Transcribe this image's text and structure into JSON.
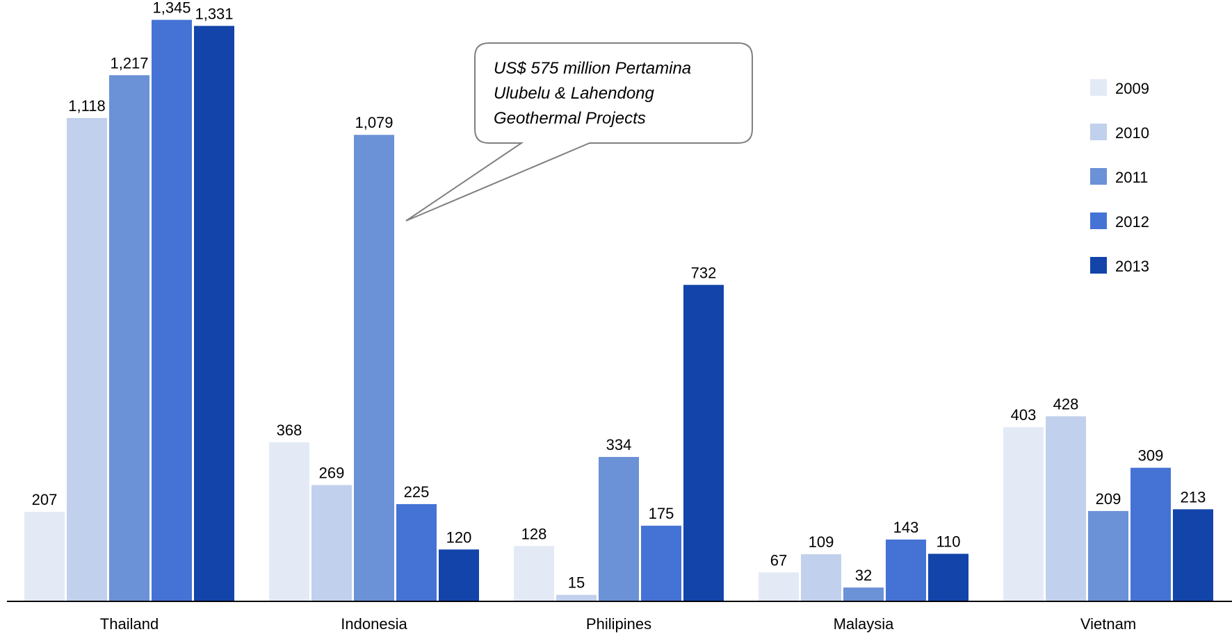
{
  "chart_data": {
    "type": "bar",
    "categories": [
      "Thailand",
      "Indonesia",
      "Philipines",
      "Malaysia",
      "Vietnam"
    ],
    "series": [
      {
        "name": "2009",
        "values": [
          207,
          368,
          128,
          67,
          403
        ]
      },
      {
        "name": "2010",
        "values": [
          1118,
          269,
          15,
          109,
          428
        ]
      },
      {
        "name": "2011",
        "values": [
          1217,
          1079,
          334,
          32,
          209
        ]
      },
      {
        "name": "2012",
        "values": [
          1345,
          225,
          175,
          143,
          309
        ]
      },
      {
        "name": "2013",
        "values": [
          1331,
          120,
          732,
          110,
          213
        ]
      }
    ],
    "value_labels": [
      [
        "207",
        "368",
        "128",
        "67",
        "403"
      ],
      [
        "1,118",
        "269",
        "15",
        "109",
        "428"
      ],
      [
        "1,217",
        "1,079",
        "334",
        "32",
        "209"
      ],
      [
        "1,345",
        "225",
        "175",
        "143",
        "309"
      ],
      [
        "1,331",
        "120",
        "732",
        "110",
        "213"
      ]
    ],
    "colors": [
      "#E3EAF6",
      "#C1D0EC",
      "#6B91D6",
      "#4573D5",
      "#1244AA"
    ],
    "ylim": [
      0,
      1400
    ],
    "grid": false,
    "legend_placement": "right",
    "annotation": {
      "lines": [
        "US$ 575 million Pertamina",
        "Ulubelu & Lahendong",
        "Geothermal Projects"
      ],
      "points_to_category": "Indonesia",
      "points_to_series": "2011"
    }
  }
}
